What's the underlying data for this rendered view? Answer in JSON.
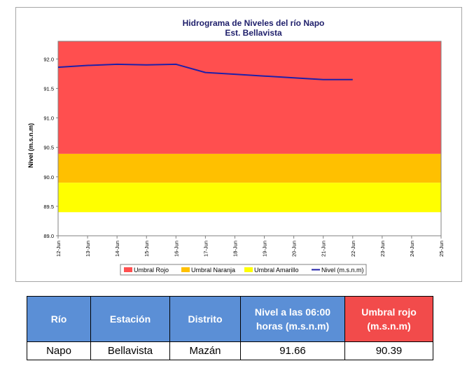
{
  "chart_data": {
    "type": "line",
    "title": "Hidrograma de Niveles del río Napo",
    "subtitle": "Est. Bellavista",
    "ylabel": "Nivel (m.s.n.m)",
    "xlabel": "",
    "ylim": [
      89.0,
      92.3
    ],
    "y_ticks": [
      "89.0",
      "89.5",
      "90.0",
      "90.5",
      "91.0",
      "91.5",
      "92.0"
    ],
    "x_ticks": [
      "12-Jun",
      "13-Jun",
      "14-Jun",
      "15-Jun",
      "16-Jun",
      "17-Jun",
      "18-Jun",
      "19-Jun",
      "20-Jun",
      "21-Jun",
      "22-Jun",
      "23-Jun",
      "24-Jun",
      "25-Jun"
    ],
    "bands": [
      {
        "name": "Umbral Rojo",
        "color": "#ff4f4f",
        "from": 90.39,
        "to": 92.3
      },
      {
        "name": "Umbral Naranja",
        "color": "#ffc000",
        "from": 89.9,
        "to": 90.39
      },
      {
        "name": "Umbral Amarillo",
        "color": "#ffff00",
        "from": 89.4,
        "to": 89.9
      }
    ],
    "series": [
      {
        "name": "Nivel (m.s.n.m)",
        "color": "#1f1fa8",
        "x": [
          "12-Jun",
          "13-Jun",
          "14-Jun",
          "15-Jun",
          "16-Jun",
          "17-Jun",
          "18-Jun",
          "19-Jun",
          "20-Jun",
          "21-Jun",
          "22-Jun"
        ],
        "values": [
          91.86,
          91.89,
          91.91,
          91.9,
          91.91,
          91.77,
          91.74,
          91.71,
          91.68,
          91.65,
          91.65
        ]
      }
    ],
    "legend": [
      "Umbral Rojo",
      "Umbral Naranja",
      "Umbral Amarillo",
      "Nivel (m.s.n.m)"
    ],
    "legend_position": "bottom",
    "grid": false
  },
  "table": {
    "headers": [
      "Río",
      "Estación",
      "Distrito",
      "Nivel a las 06:00 horas (m.s.n.m)",
      "Umbral rojo (m.s.n.m)"
    ],
    "row": [
      "Napo",
      "Bellavista",
      "Mazán",
      "91.66",
      "90.39"
    ]
  }
}
